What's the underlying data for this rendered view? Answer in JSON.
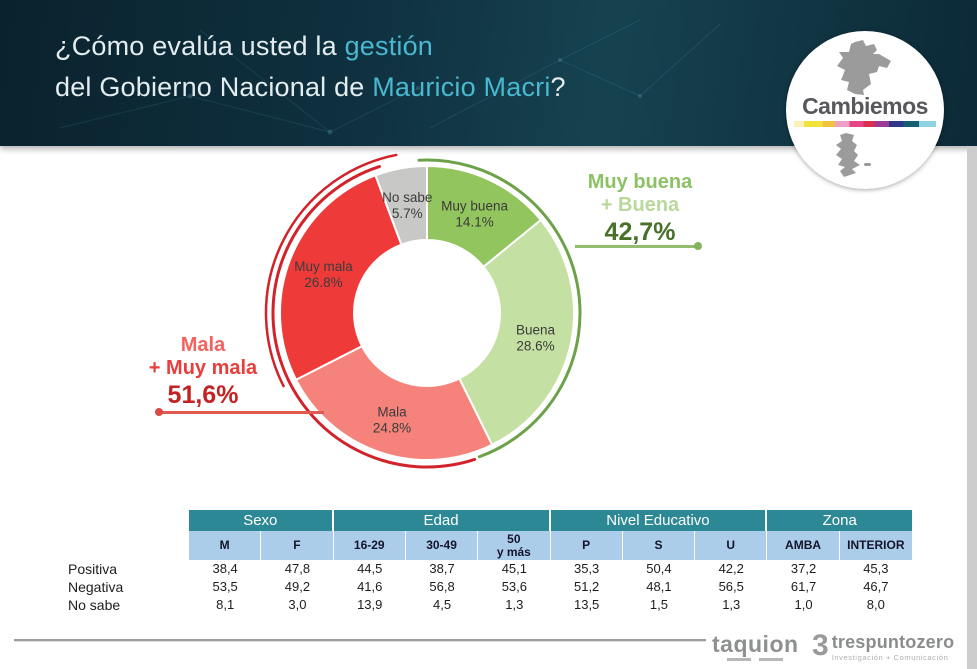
{
  "header": {
    "line1_text": "¿Cómo evalúa usted la",
    "line1_accent": "gestión",
    "line2_text": "del Gobierno Nacional de",
    "line2_accent": "Mauricio Macri",
    "line2_punct": "?"
  },
  "logo": {
    "name": "Cambiemos"
  },
  "chart_data": {
    "type": "donut",
    "question": "¿Cómo evalúa usted la gestión del Gobierno Nacional de Mauricio Macri?",
    "segments": [
      {
        "label": "Muy buena",
        "value": 14.1,
        "display": "14.1%",
        "color": "#92c55e"
      },
      {
        "label": "Buena",
        "value": 28.6,
        "display": "28.6%",
        "color": "#c4e0a2"
      },
      {
        "label": "Mala",
        "value": 24.8,
        "display": "24.8%",
        "color": "#f5837b"
      },
      {
        "label": "Muy mala",
        "value": 26.8,
        "display": "26.8%",
        "color": "#ee3b3a"
      },
      {
        "label": "No sabe",
        "value": 5.7,
        "display": "5.7%",
        "color": "#c8c8c6"
      }
    ],
    "aggregates": {
      "positive": {
        "line1": "Muy buena",
        "line2": "+ Buena",
        "value": 42.7,
        "display": "42,7%"
      },
      "negative": {
        "line1": "Mala",
        "line2": "+ Muy mala",
        "value": 51.6,
        "display": "51,6%"
      }
    }
  },
  "table": {
    "groups": [
      {
        "label": "Sexo",
        "span": 2
      },
      {
        "label": "Edad",
        "span": 3
      },
      {
        "label": "Nivel Educativo",
        "span": 3
      },
      {
        "label": "Zona",
        "span": 2
      }
    ],
    "columns": [
      "M",
      "F",
      "16-29",
      "30-49",
      "50\ny más",
      "P",
      "S",
      "U",
      "AMBA",
      "INTERIOR"
    ],
    "rows": [
      {
        "label": "Positiva",
        "values": [
          "38,4",
          "47,8",
          "44,5",
          "38,7",
          "45,1",
          "35,3",
          "50,4",
          "42,2",
          "37,2",
          "45,3"
        ]
      },
      {
        "label": "Negativa",
        "values": [
          "53,5",
          "49,2",
          "41,6",
          "56,8",
          "53,6",
          "51,2",
          "48,1",
          "56,5",
          "61,7",
          "46,7"
        ]
      },
      {
        "label": "No sabe",
        "values": [
          "8,1",
          "3,0",
          "13,9",
          "4,5",
          "1,3",
          "13,5",
          "1,5",
          "1,3",
          "1,0",
          "8,0"
        ]
      }
    ]
  },
  "footer": {
    "taquion": "taquion",
    "tpz_digit": "3",
    "tpz_name": "trespuntozero",
    "tpz_tagline": "Investigación + Comunicación"
  },
  "colors": {
    "banner_bg": "#0c2a37",
    "accent_cyan": "#49b8d0",
    "positive_dark": "#47702a",
    "positive_mid": "#8cc263",
    "positive_light": "#b9d89b",
    "negative_dark": "#c32222",
    "negative_mid": "#e93e3b",
    "negative_light": "#f2625e",
    "table_header_teal": "#2b8894",
    "table_subheader_blue": "#accde9",
    "arc_green": "#6da24a",
    "arc_red": "#d2232a"
  }
}
